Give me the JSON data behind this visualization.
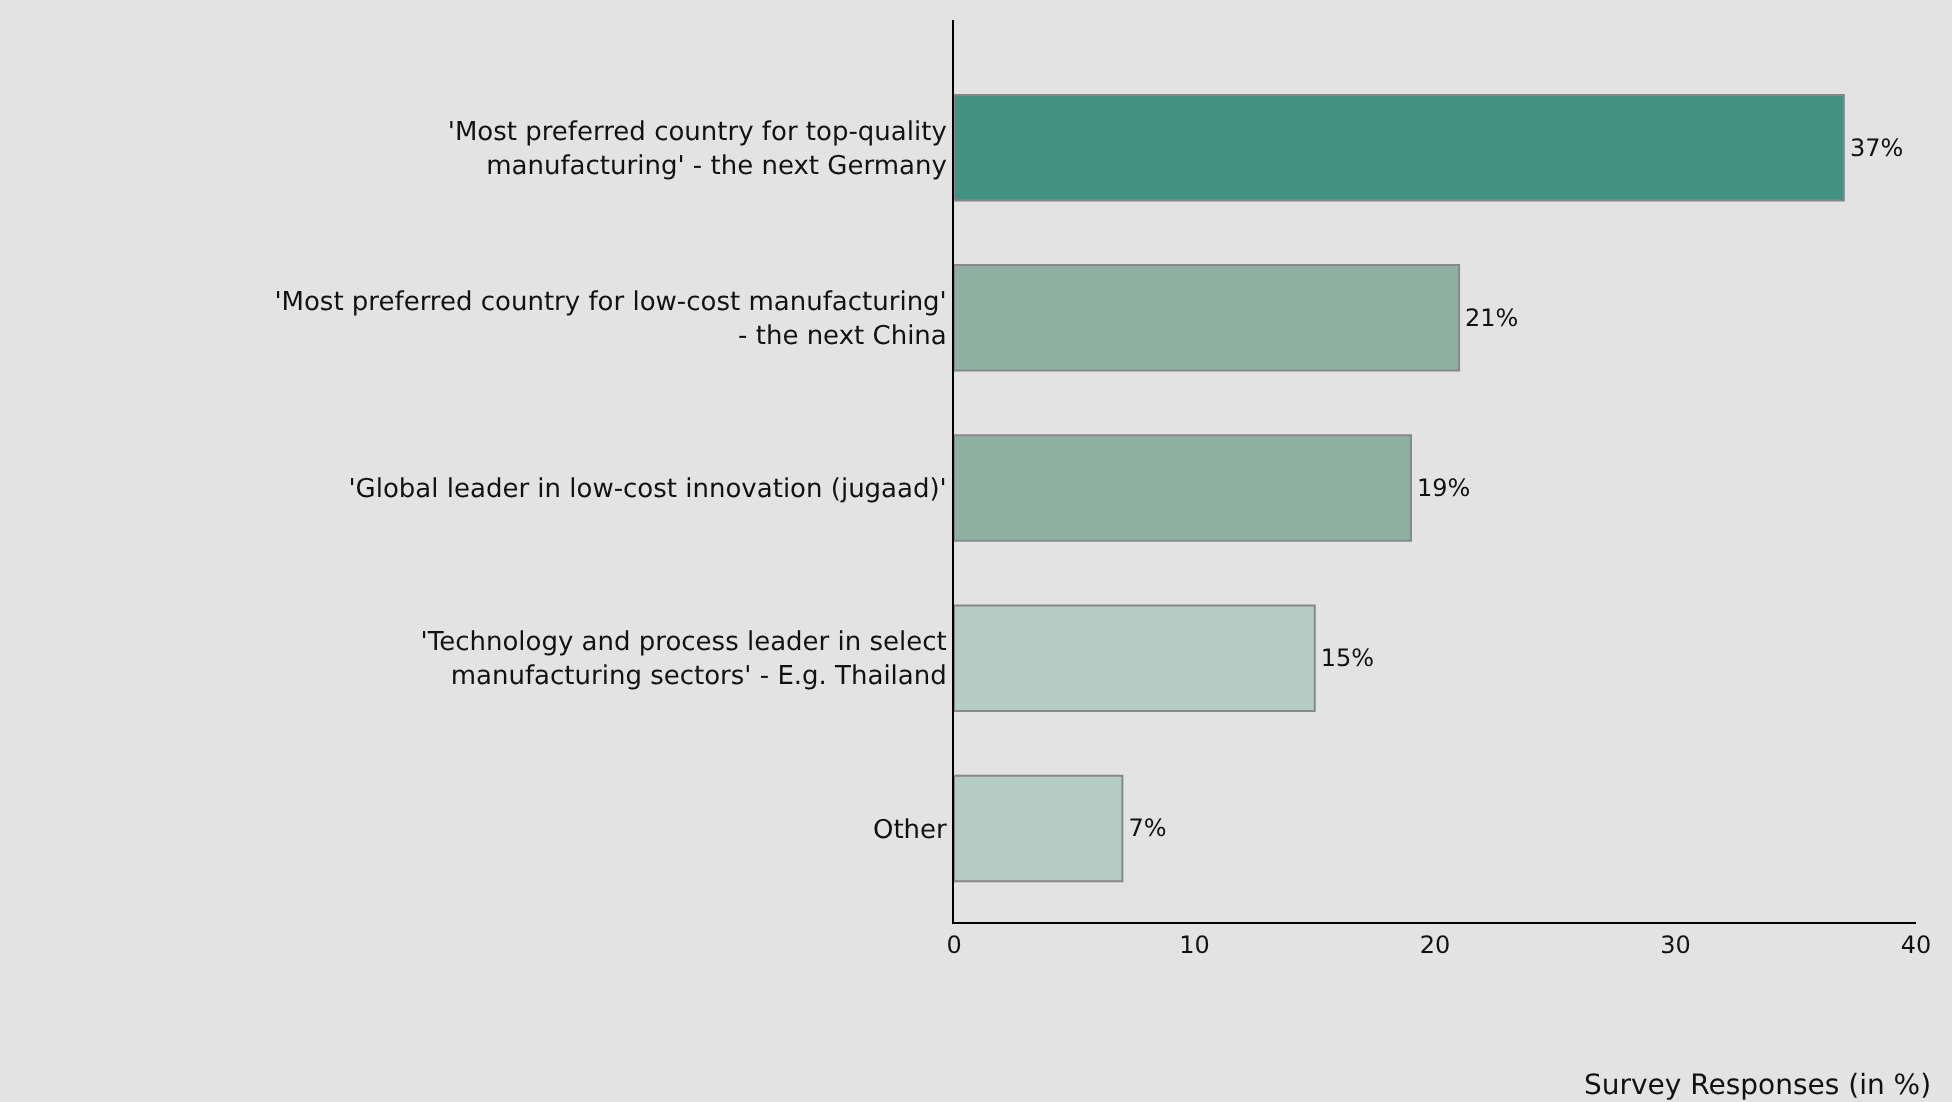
{
  "chart_data": {
    "type": "bar",
    "orientation": "horizontal",
    "categories": [
      "'Most preferred country for top-quality\nmanufacturing' - the next Germany",
      "'Most preferred country for low-cost manufacturing'\n- the next China",
      "'Global leader in low-cost innovation (jugaad)'",
      "'Technology and process leader in select\nmanufacturing sectors' - E.g. Thailand",
      "Other"
    ],
    "values": [
      37,
      21,
      19,
      15,
      7
    ],
    "value_labels": [
      "37%",
      "21%",
      "19%",
      "15%",
      "7%"
    ],
    "colors": [
      "#419282",
      "#8db0a3",
      "#8db0a3",
      "#b5cdc5",
      "#b5cdc5"
    ],
    "xlabel": "Survey Responses (in %)",
    "xlim": [
      0,
      40
    ],
    "xticks": [
      0,
      10,
      20,
      30,
      40
    ],
    "grid": false,
    "legend": false
  }
}
